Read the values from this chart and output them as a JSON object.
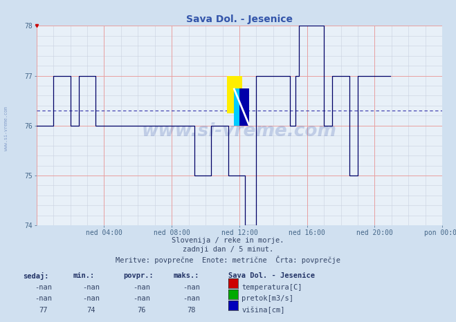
{
  "title": "Sava Dol. - Jesenice",
  "bg_color": "#d0e0f0",
  "plot_bg_color": "#e8f0f8",
  "line_color": "#000066",
  "avg_line_color": "#3333aa",
  "grid_major_color": "#e8a0a0",
  "grid_minor_color": "#c8d0e0",
  "tick_color": "#446688",
  "title_color": "#3355aa",
  "text_color": "#334466",
  "table_header_color": "#223366",
  "ylim": [
    74,
    78
  ],
  "yticks": [
    74,
    75,
    76,
    77,
    78
  ],
  "xtick_labels": [
    "ned 04:00",
    "ned 08:00",
    "ned 12:00",
    "ned 16:00",
    "ned 20:00",
    "pon 00:00"
  ],
  "xtick_positions": [
    48,
    96,
    144,
    192,
    240,
    288
  ],
  "total_points": 288,
  "avg_value": 76.3,
  "subtitle1": "Slovenija / reke in morje.",
  "subtitle2": "zadnji dan / 5 minut.",
  "subtitle3": "Meritve: povprečne  Enote: metrične  Črta: povprečje",
  "legend_title": "Sava Dol. - Jesenice",
  "col_headers": [
    "sedaj:",
    "min.:",
    "povpr.:",
    "maks.:"
  ],
  "rows": [
    [
      "-nan",
      "-nan",
      "-nan",
      "-nan",
      "temperatura[C]",
      "#cc0000"
    ],
    [
      "-nan",
      "-nan",
      "-nan",
      "-nan",
      "pretok[m3/s]",
      "#00aa00"
    ],
    [
      "77",
      "74",
      "76",
      "78",
      "višina[cm]",
      "#0000bb"
    ]
  ],
  "watermark": "www.si-vreme.com",
  "height_data": [
    76,
    76,
    76,
    76,
    76,
    76,
    76,
    76,
    76,
    76,
    76,
    76,
    77,
    77,
    77,
    77,
    77,
    77,
    77,
    77,
    77,
    77,
    77,
    77,
    76,
    76,
    76,
    76,
    76,
    76,
    77,
    77,
    77,
    77,
    77,
    77,
    77,
    77,
    77,
    77,
    77,
    77,
    76,
    76,
    76,
    76,
    76,
    76,
    76,
    76,
    76,
    76,
    76,
    76,
    76,
    76,
    76,
    76,
    76,
    76,
    76,
    76,
    76,
    76,
    76,
    76,
    76,
    76,
    76,
    76,
    76,
    76,
    76,
    76,
    76,
    76,
    76,
    76,
    76,
    76,
    76,
    76,
    76,
    76,
    76,
    76,
    76,
    76,
    76,
    76,
    76,
    76,
    76,
    76,
    76,
    76,
    76,
    76,
    76,
    76,
    76,
    76,
    76,
    76,
    76,
    76,
    76,
    76,
    76,
    76,
    76,
    76,
    75,
    75,
    75,
    75,
    75,
    75,
    75,
    75,
    75,
    75,
    75,
    75,
    76,
    76,
    76,
    76,
    76,
    76,
    76,
    76,
    76,
    76,
    76,
    76,
    75,
    75,
    75,
    75,
    75,
    75,
    75,
    75,
    75,
    75,
    75,
    75,
    74,
    74,
    74,
    74,
    74,
    74,
    74,
    74,
    77,
    77,
    77,
    77,
    77,
    77,
    77,
    77,
    77,
    77,
    77,
    77,
    77,
    77,
    77,
    77,
    77,
    77,
    77,
    77,
    77,
    77,
    77,
    77,
    76,
    76,
    76,
    76,
    77,
    77,
    78,
    78,
    78,
    78,
    78,
    78,
    78,
    78,
    78,
    78,
    78,
    78,
    78,
    78,
    78,
    78,
    78,
    78,
    76,
    76,
    76,
    76,
    76,
    76,
    77,
    77,
    77,
    77,
    77,
    77,
    77,
    77,
    77,
    77,
    77,
    77,
    75,
    75,
    75,
    75,
    75,
    75,
    77,
    77,
    77,
    77,
    77,
    77,
    77,
    77,
    77,
    77,
    77,
    77,
    77,
    77,
    77,
    77,
    77,
    77,
    77,
    77,
    77,
    77,
    77,
    77
  ]
}
